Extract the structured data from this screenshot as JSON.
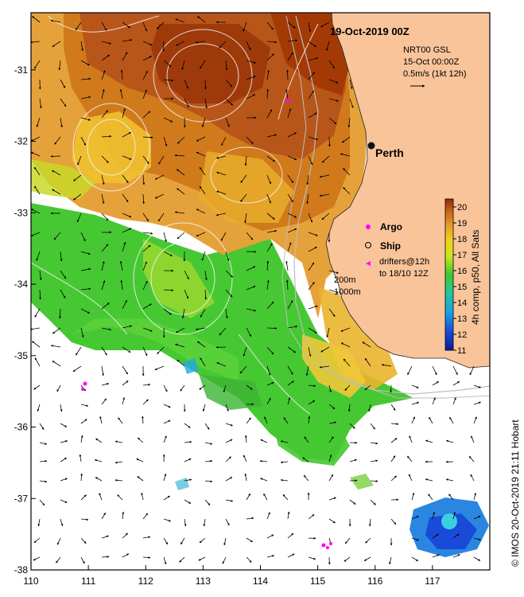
{
  "map": {
    "title": "19-Oct-2019 00Z",
    "product": {
      "line1": "NRT00 GSL",
      "line2": "15-Oct 00:00Z",
      "line3": "0.5m/s (1kt 12h)"
    },
    "city": "Perth",
    "legend": {
      "argo": "Argo",
      "ship": "Ship",
      "drifters1": "drifters@12h",
      "drifters2": "to 18/10 12Z",
      "iso200": "200m",
      "iso1000": "1000m"
    },
    "colorbar": {
      "label": "4h comp, p50, All Sats",
      "ticks": [
        "11",
        "12",
        "13",
        "14",
        "15",
        "16",
        "17",
        "18",
        "19",
        "20"
      ],
      "min": 11,
      "max": 20.5
    },
    "credit": "© IMOS 20-Oct-2019 21:11 Hobart",
    "x_ticks": [
      "110",
      "111",
      "112",
      "113",
      "114",
      "115",
      "116",
      "117"
    ],
    "y_ticks": [
      "-31",
      "-32",
      "-33",
      "-34",
      "-35",
      "-36",
      "-37",
      "-38"
    ],
    "lon_range": [
      110,
      118
    ],
    "lat_range": [
      -38,
      -30.2
    ],
    "colors": {
      "land": "#f9c49a",
      "warm": "#a33a06",
      "mid": "#e6a830",
      "cool": "#3cc832",
      "cold": "#1a3cc8",
      "argo": "#ff00ff"
    }
  }
}
